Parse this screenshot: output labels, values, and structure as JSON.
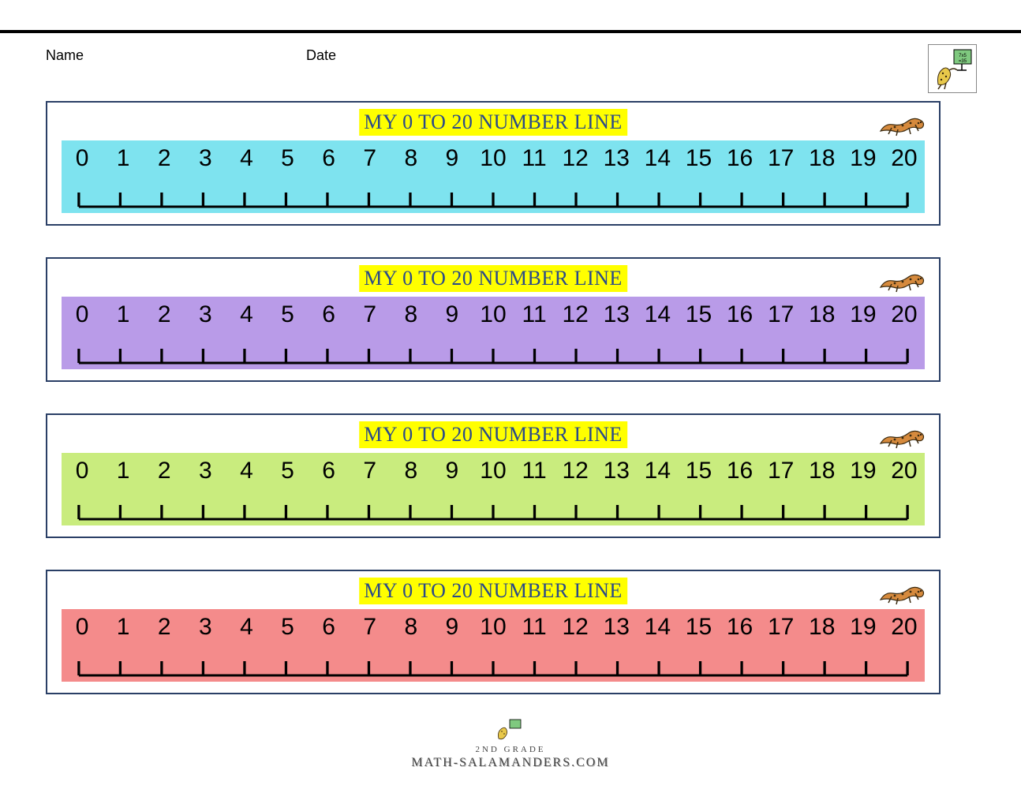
{
  "header": {
    "name_label": "Name",
    "date_label": "Date"
  },
  "title_text": "MY 0 TO 20 NUMBER LINE",
  "title_bg": "#ffff00",
  "title_color": "#2a4a8a",
  "title_fontsize": 26,
  "panel_border_color": "#2a3f66",
  "numbers": [
    "0",
    "1",
    "2",
    "3",
    "4",
    "5",
    "6",
    "7",
    "8",
    "9",
    "10",
    "11",
    "12",
    "13",
    "14",
    "15",
    "16",
    "17",
    "18",
    "19",
    "20"
  ],
  "number_fontsize": 30,
  "number_color": "#000000",
  "strip_colors": [
    "#7ee3ef",
    "#b99be8",
    "#c9ec7e",
    "#f48b8b"
  ],
  "ruler_line_color": "#000000",
  "ruler_line_width": 3,
  "tick_height": 18,
  "salamander_colors": {
    "body": "#d68a3d",
    "spots": "#3a2a10"
  },
  "logo": {
    "board_bg": "#7fc97f",
    "board_text": "7x5=35",
    "salamander_body": "#e8c84a"
  },
  "footer": {
    "line1": "2ND GRADE",
    "line2": "MATH-SALAMANDERS.COM"
  }
}
